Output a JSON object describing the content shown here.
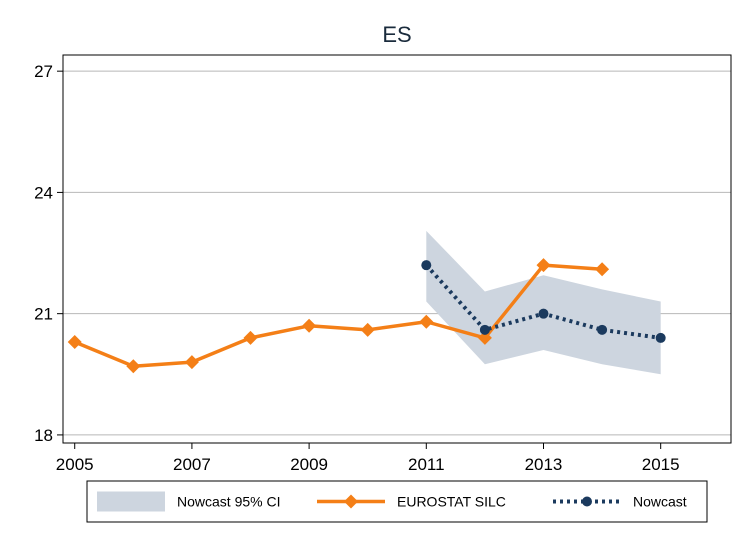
{
  "chart_data": {
    "type": "line",
    "title": "ES",
    "xlabel": "",
    "ylabel": "",
    "xlim": [
      2004.8,
      2016.2
    ],
    "ylim": [
      17.8,
      27.4
    ],
    "x_ticks": [
      2005,
      2007,
      2009,
      2011,
      2013,
      2015
    ],
    "y_ticks": [
      18,
      21,
      24,
      27
    ],
    "grid": true,
    "legend_position": "bottom",
    "series": [
      {
        "name": "Nowcast 95% CI",
        "kind": "band",
        "color": "#cdd5df",
        "x": [
          2011,
          2012,
          2013,
          2014,
          2015
        ],
        "lower": [
          21.3,
          19.75,
          20.1,
          19.75,
          19.5
        ],
        "upper": [
          23.05,
          21.55,
          21.95,
          21.6,
          21.3
        ]
      },
      {
        "name": "EUROSTAT SILC",
        "kind": "line",
        "color": "#f47f17",
        "marker": "diamond",
        "x": [
          2005,
          2006,
          2007,
          2008,
          2009,
          2010,
          2011,
          2012,
          2013,
          2014
        ],
        "y": [
          20.3,
          19.7,
          19.8,
          20.4,
          20.7,
          20.6,
          20.8,
          20.4,
          22.2,
          22.1
        ]
      },
      {
        "name": "Nowcast",
        "kind": "dotted-line",
        "color": "#1b3a5e",
        "marker": "circle",
        "x": [
          2011,
          2012,
          2013,
          2014,
          2015
        ],
        "y": [
          22.2,
          20.6,
          21.0,
          20.6,
          20.4
        ]
      }
    ]
  }
}
